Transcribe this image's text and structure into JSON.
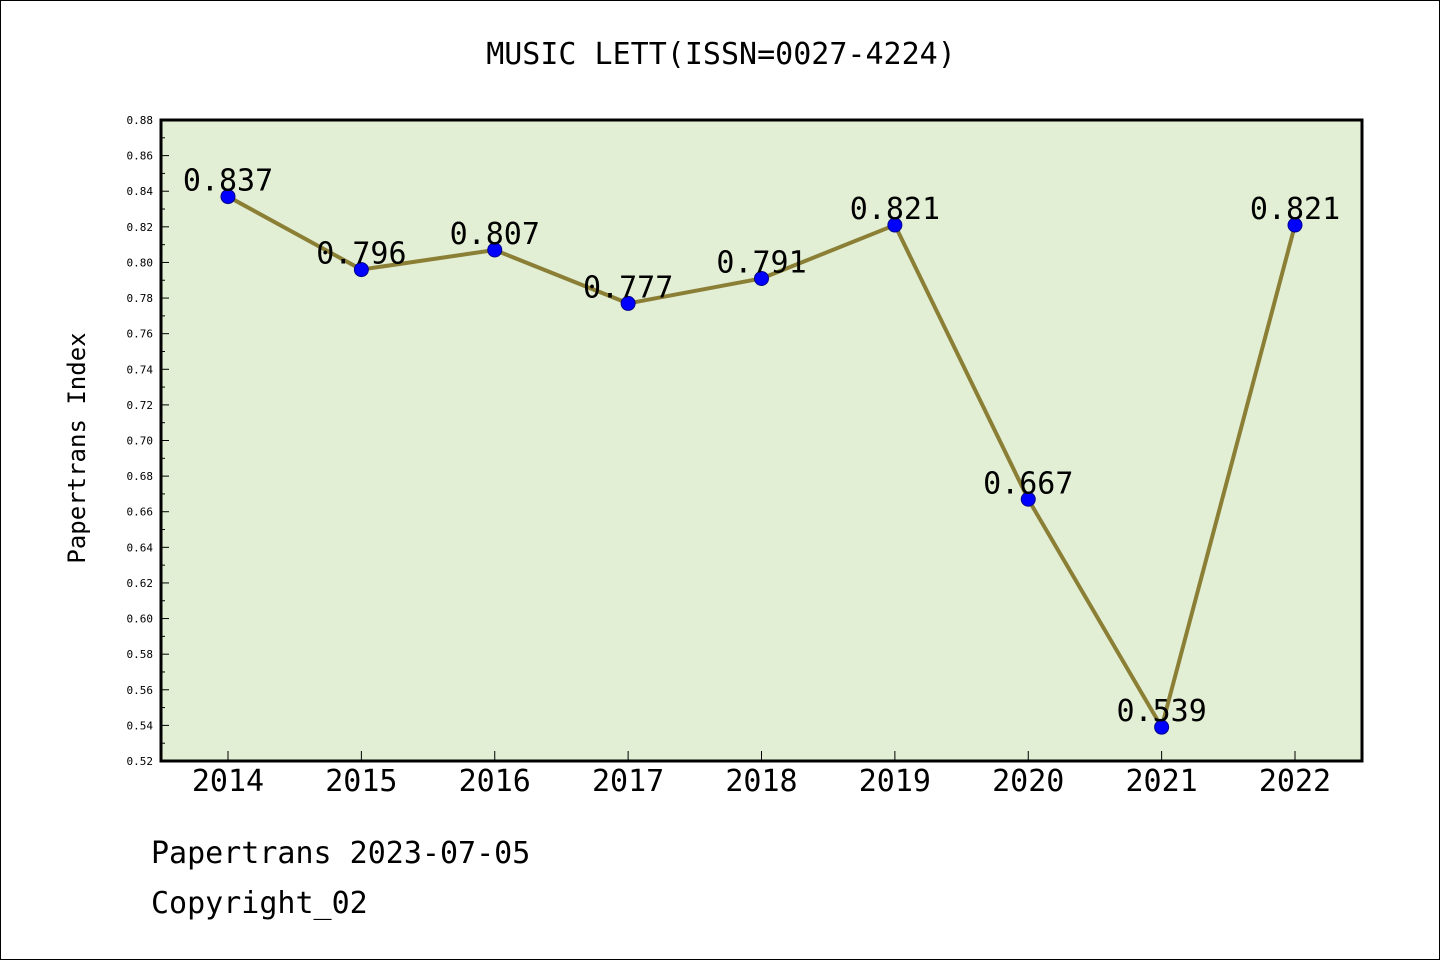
{
  "colors": {
    "plot_background": "#e2efd5",
    "line": "#8b7f36",
    "marker": "#0000ff",
    "text": "#000000"
  },
  "footer": {
    "line1": "Papertrans 2023-07-05",
    "line2": "Copyright_02"
  },
  "chart_data": {
    "type": "line",
    "title": "MUSIC LETT(ISSN=0027-4224)",
    "xlabel": "",
    "ylabel": "Papertrans Index",
    "x": [
      "2014",
      "2015",
      "2016",
      "2017",
      "2018",
      "2019",
      "2020",
      "2021",
      "2022"
    ],
    "values": [
      0.837,
      0.796,
      0.807,
      0.777,
      0.791,
      0.821,
      0.667,
      0.539,
      0.821
    ],
    "data_labels": [
      "0.837",
      "0.796",
      "0.807",
      "0.777",
      "0.791",
      "0.821",
      "0.667",
      "0.539",
      "0.821"
    ],
    "ylim": [
      0.52,
      0.88
    ],
    "yticks": [
      "0.52",
      "0.54",
      "0.56",
      "0.58",
      "0.60",
      "0.62",
      "0.64",
      "0.66",
      "0.68",
      "0.70",
      "0.72",
      "0.74",
      "0.76",
      "0.78",
      "0.80",
      "0.82",
      "0.84",
      "0.86",
      "0.88"
    ],
    "grid": false,
    "legend": "none"
  }
}
